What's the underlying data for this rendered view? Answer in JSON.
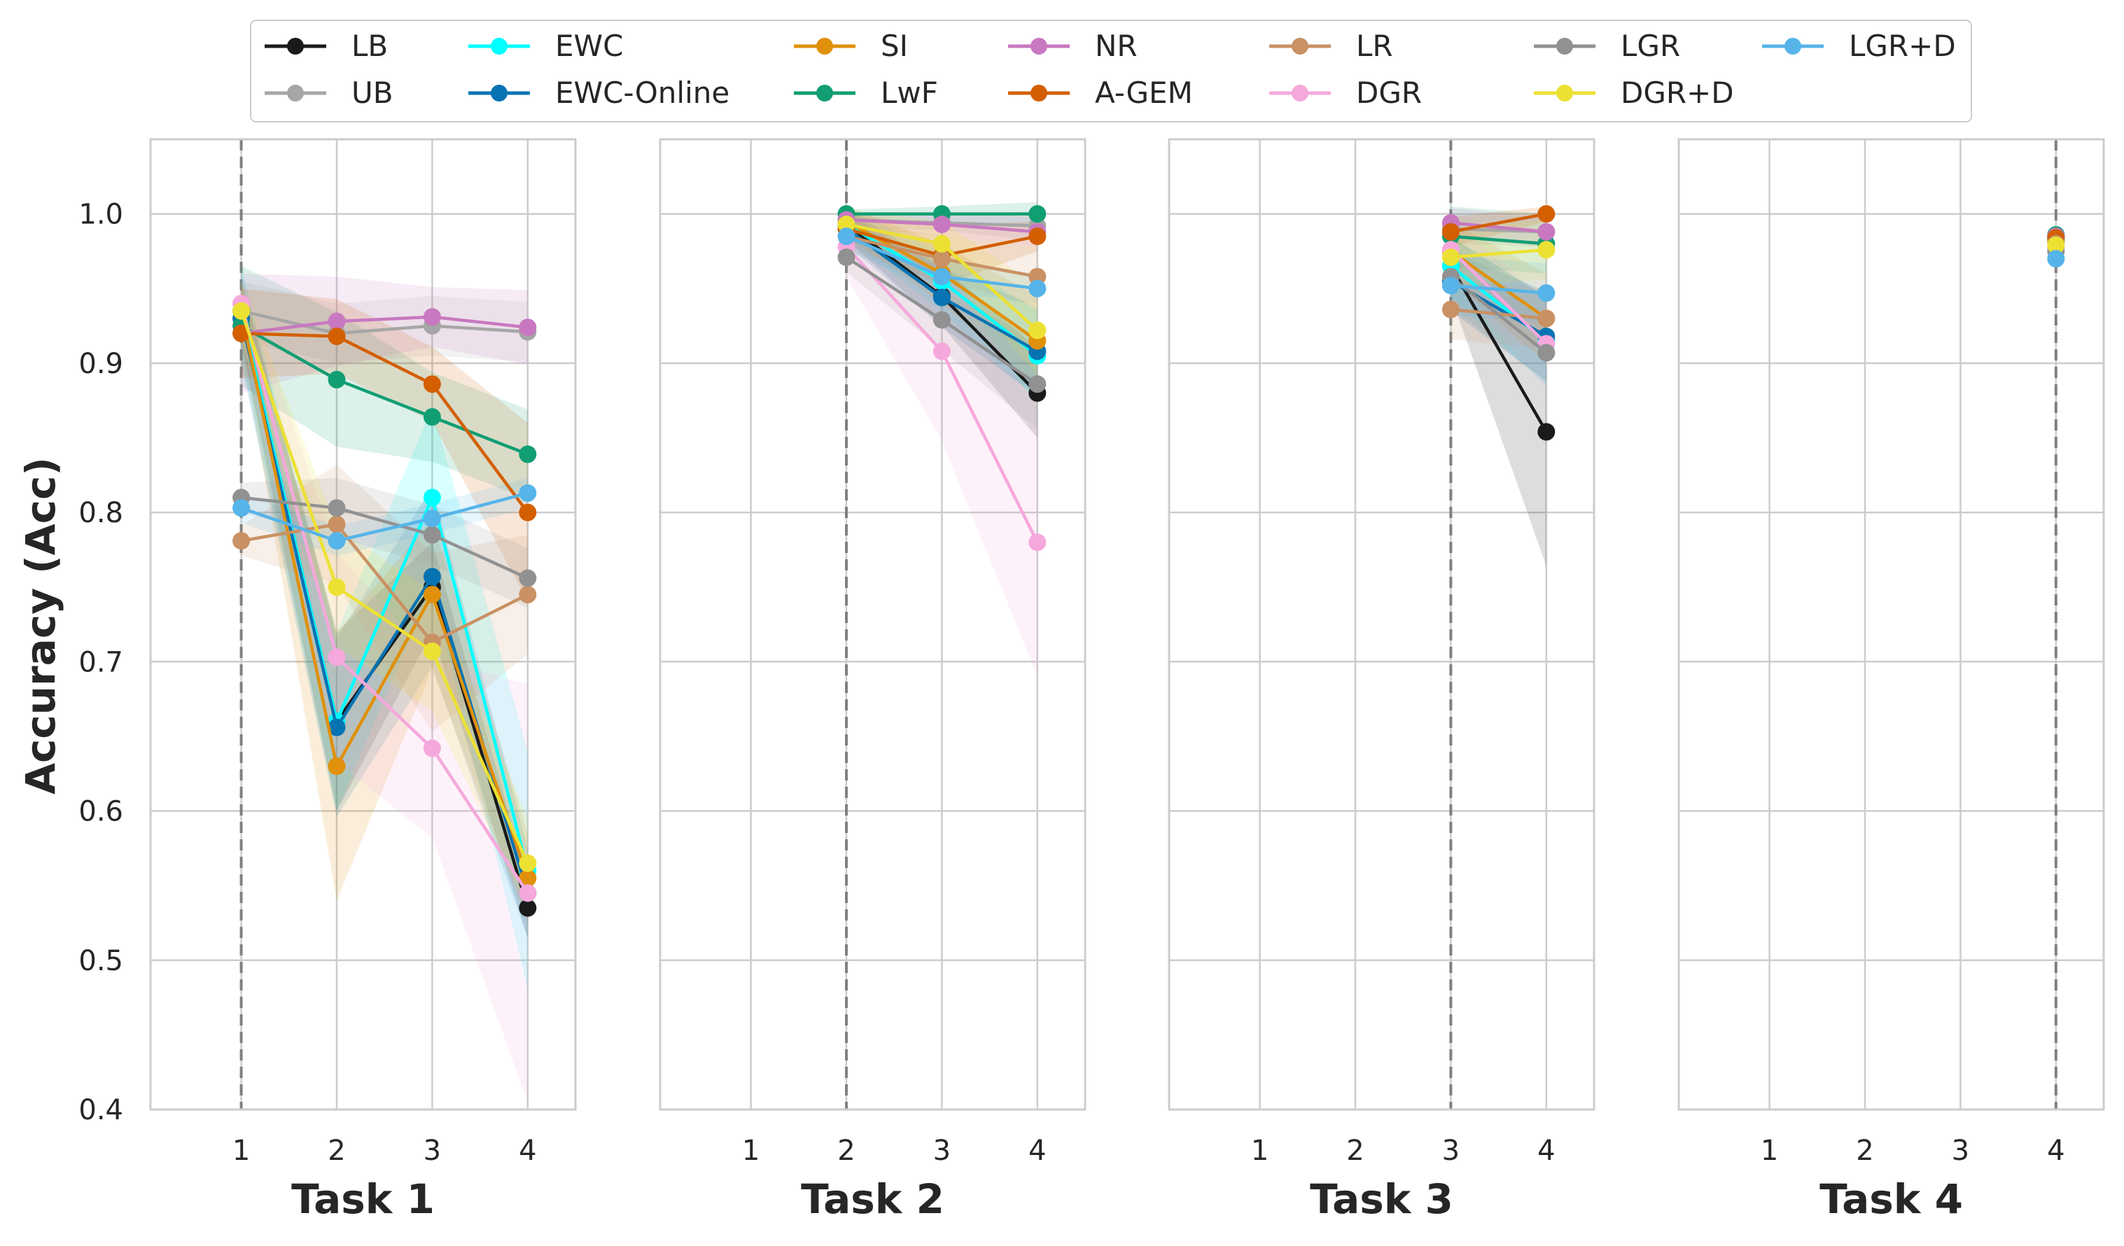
{
  "chart_data": {
    "type": "line",
    "ylabel": "Accuracy (Acc)",
    "ylim": [
      0.4,
      1.05
    ],
    "yticks": [
      0.4,
      0.5,
      0.6,
      0.7,
      0.8,
      0.9,
      1.0
    ],
    "ytick_labels": [
      "0.4",
      "0.5",
      "0.6",
      "0.7",
      "0.8",
      "0.9",
      "1.0"
    ],
    "x": [
      1,
      2,
      3,
      4
    ],
    "xlim": [
      0.05,
      4.5
    ],
    "grid": true,
    "legend_position": "top-center",
    "legend": [
      {
        "name": "LB",
        "color": "#1a1a1a"
      },
      {
        "name": "UB",
        "color": "#a6a6a6"
      },
      {
        "name": "EWC",
        "color": "#00ffff"
      },
      {
        "name": "EWC-Online",
        "color": "#0873b3"
      },
      {
        "name": "SI",
        "color": "#e0900a"
      },
      {
        "name": "LwF",
        "color": "#119e73"
      },
      {
        "name": "NR",
        "color": "#c878c0"
      },
      {
        "name": "A-GEM",
        "color": "#d35f00"
      },
      {
        "name": "LR",
        "color": "#c99164"
      },
      {
        "name": "DGR",
        "color": "#f5a8dc"
      },
      {
        "name": "LGR",
        "color": "#919191"
      },
      {
        "name": "DGR+D",
        "color": "#ece133"
      },
      {
        "name": "LGR+D",
        "color": "#56b4e9"
      }
    ],
    "panels": [
      {
        "xlabel": "Task 1",
        "start": 1,
        "series": [
          {
            "name": "LB",
            "values": [
              0.935,
              0.66,
              0.75,
              0.535
            ],
            "band": [
              0.02,
              0.06,
              0.03,
              0.02
            ]
          },
          {
            "name": "UB",
            "values": [
              0.935,
              0.92,
              0.925,
              0.921
            ],
            "band": [
              0.02,
              0.02,
              0.02,
              0.02
            ]
          },
          {
            "name": "EWC",
            "values": [
              0.935,
              0.66,
              0.81,
              0.56
            ],
            "band": [
              0.03,
              0.06,
              0.06,
              0.08
            ]
          },
          {
            "name": "EWC-Online",
            "values": [
              0.93,
              0.656,
              0.757,
              0.545
            ],
            "band": [
              0.03,
              0.06,
              0.06,
              0.03
            ]
          },
          {
            "name": "SI",
            "values": [
              0.935,
              0.63,
              0.745,
              0.555
            ],
            "band": [
              0.02,
              0.09,
              0.05,
              0.03
            ]
          },
          {
            "name": "LwF",
            "values": [
              0.925,
              0.889,
              0.864,
              0.839
            ],
            "band": [
              0.04,
              0.045,
              0.03,
              0.03
            ]
          },
          {
            "name": "NR",
            "values": [
              0.92,
              0.928,
              0.931,
              0.924
            ],
            "band": [
              0.04,
              0.03,
              0.02,
              0.025
            ]
          },
          {
            "name": "A-GEM",
            "values": [
              0.92,
              0.918,
              0.886,
              0.8
            ],
            "band": [
              0.03,
              0.025,
              0.025,
              0.06
            ]
          },
          {
            "name": "LR",
            "values": [
              0.781,
              0.792,
              0.713,
              0.745
            ],
            "band": [
              0.01,
              0.04,
              0.06,
              0.04
            ]
          },
          {
            "name": "DGR",
            "values": [
              0.94,
              0.703,
              0.642,
              0.545
            ],
            "band": [
              0.02,
              0.07,
              0.06,
              0.14
            ]
          },
          {
            "name": "LGR",
            "values": [
              0.81,
              0.803,
              0.785,
              0.756
            ],
            "band": [
              0.01,
              0.02,
              0.02,
              0.02
            ]
          },
          {
            "name": "DGR+D",
            "values": [
              0.935,
              0.75,
              0.707,
              0.565
            ],
            "band": [
              0.02,
              0.04,
              0.04,
              0.03
            ]
          },
          {
            "name": "LGR+D",
            "values": [
              0.803,
              0.781,
              0.796,
              0.813
            ],
            "band": [
              0.01,
              0.01,
              0.01,
              0.01
            ]
          }
        ]
      },
      {
        "xlabel": "Task 2",
        "start": 2,
        "series": [
          {
            "name": "LB",
            "values": [
              null,
              0.993,
              0.945,
              0.88
            ],
            "band": [
              0,
              0.01,
              0.02,
              0.03
            ]
          },
          {
            "name": "UB",
            "values": [
              null,
              0.996,
              0.994,
              0.992
            ],
            "band": [
              0,
              0.005,
              0.005,
              0.01
            ]
          },
          {
            "name": "EWC",
            "values": [
              null,
              0.993,
              0.955,
              0.905
            ],
            "band": [
              0,
              0.01,
              0.02,
              0.03
            ]
          },
          {
            "name": "EWC-Online",
            "values": [
              null,
              0.99,
              0.944,
              0.908
            ],
            "band": [
              0,
              0.01,
              0.02,
              0.03
            ]
          },
          {
            "name": "SI",
            "values": [
              null,
              0.995,
              0.96,
              0.915
            ],
            "band": [
              0,
              0.01,
              0.02,
              0.03
            ]
          },
          {
            "name": "LwF",
            "values": [
              null,
              1.0,
              1.0,
              1.0
            ],
            "band": [
              0,
              0.003,
              0.005,
              0.008
            ]
          },
          {
            "name": "NR",
            "values": [
              null,
              0.996,
              0.993,
              0.988
            ],
            "band": [
              0,
              0.005,
              0.008,
              0.01
            ]
          },
          {
            "name": "A-GEM",
            "values": [
              null,
              0.99,
              0.972,
              0.985
            ],
            "band": [
              0,
              0.01,
              0.02,
              0.01
            ]
          },
          {
            "name": "LR",
            "values": [
              null,
              0.985,
              0.97,
              0.958
            ],
            "band": [
              0,
              0.01,
              0.015,
              0.02
            ]
          },
          {
            "name": "DGR",
            "values": [
              null,
              0.978,
              0.908,
              0.78
            ],
            "band": [
              0,
              0.02,
              0.06,
              0.09
            ]
          },
          {
            "name": "LGR",
            "values": [
              null,
              0.971,
              0.929,
              0.886
            ],
            "band": [
              0,
              0.01,
              0.02,
              0.03
            ]
          },
          {
            "name": "DGR+D",
            "values": [
              null,
              0.993,
              0.98,
              0.922
            ],
            "band": [
              0,
              0.01,
              0.015,
              0.03
            ]
          },
          {
            "name": "LGR+D",
            "values": [
              null,
              0.985,
              0.958,
              0.95
            ],
            "band": [
              0,
              0.01,
              0.01,
              0.01
            ]
          }
        ]
      },
      {
        "xlabel": "Task 3",
        "start": 3,
        "series": [
          {
            "name": "LB",
            "values": [
              null,
              null,
              0.965,
              0.854
            ],
            "band": [
              0,
              0,
              0.02,
              0.09
            ]
          },
          {
            "name": "UB",
            "values": [
              null,
              null,
              0.99,
              0.988
            ],
            "band": [
              0,
              0,
              0.01,
              0.01
            ]
          },
          {
            "name": "EWC",
            "values": [
              null,
              null,
              0.965,
              0.915
            ],
            "band": [
              0,
              0,
              0.02,
              0.03
            ]
          },
          {
            "name": "EWC-Online",
            "values": [
              null,
              null,
              0.955,
              0.918
            ],
            "band": [
              0,
              0,
              0.02,
              0.03
            ]
          },
          {
            "name": "SI",
            "values": [
              null,
              null,
              0.975,
              0.93
            ],
            "band": [
              0,
              0,
              0.02,
              0.03
            ]
          },
          {
            "name": "LwF",
            "values": [
              null,
              null,
              0.985,
              0.98
            ],
            "band": [
              0,
              0,
              0.02,
              0.02
            ]
          },
          {
            "name": "NR",
            "values": [
              null,
              null,
              0.994,
              0.988
            ],
            "band": [
              0,
              0,
              0.01,
              0.01
            ]
          },
          {
            "name": "A-GEM",
            "values": [
              null,
              null,
              0.988,
              1.0
            ],
            "band": [
              0,
              0,
              0.01,
              0.005
            ]
          },
          {
            "name": "LR",
            "values": [
              null,
              null,
              0.936,
              0.93
            ],
            "band": [
              0,
              0,
              0.02,
              0.02
            ]
          },
          {
            "name": "DGR",
            "values": [
              null,
              null,
              0.976,
              0.913
            ],
            "band": [
              0,
              0,
              0.02,
              0.03
            ]
          },
          {
            "name": "LGR",
            "values": [
              null,
              null,
              0.958,
              0.907
            ],
            "band": [
              0,
              0,
              0.02,
              0.02
            ]
          },
          {
            "name": "DGR+D",
            "values": [
              null,
              null,
              0.971,
              0.976
            ],
            "band": [
              0,
              0,
              0.02,
              0.02
            ]
          },
          {
            "name": "LGR+D",
            "values": [
              null,
              null,
              0.952,
              0.947
            ],
            "band": [
              0,
              0,
              0.02,
              0.02
            ]
          }
        ]
      },
      {
        "xlabel": "Task 4",
        "start": 4,
        "series": [
          {
            "name": "LB",
            "values": [
              null,
              null,
              null,
              0.985
            ],
            "band": [
              0,
              0,
              0,
              0
            ]
          },
          {
            "name": "UB",
            "values": [
              null,
              null,
              null,
              0.985
            ],
            "band": [
              0,
              0,
              0,
              0
            ]
          },
          {
            "name": "EWC",
            "values": [
              null,
              null,
              null,
              0.983
            ],
            "band": [
              0,
              0,
              0,
              0
            ]
          },
          {
            "name": "EWC-Online",
            "values": [
              null,
              null,
              null,
              0.983
            ],
            "band": [
              0,
              0,
              0,
              0
            ]
          },
          {
            "name": "SI",
            "values": [
              null,
              null,
              null,
              0.982
            ],
            "band": [
              0,
              0,
              0,
              0
            ]
          },
          {
            "name": "LwF",
            "values": [
              null,
              null,
              null,
              0.986
            ],
            "band": [
              0,
              0,
              0,
              0
            ]
          },
          {
            "name": "NR",
            "values": [
              null,
              null,
              null,
              0.985
            ],
            "band": [
              0,
              0,
              0,
              0
            ]
          },
          {
            "name": "A-GEM",
            "values": [
              null,
              null,
              null,
              0.984
            ],
            "band": [
              0,
              0,
              0,
              0
            ]
          },
          {
            "name": "LR",
            "values": [
              null,
              null,
              null,
              0.98
            ],
            "band": [
              0,
              0,
              0,
              0
            ]
          },
          {
            "name": "DGR",
            "values": [
              null,
              null,
              null,
              0.978
            ],
            "band": [
              0,
              0,
              0,
              0
            ]
          },
          {
            "name": "LGR",
            "values": [
              null,
              null,
              null,
              0.975
            ],
            "band": [
              0,
              0,
              0,
              0
            ]
          },
          {
            "name": "DGR+D",
            "values": [
              null,
              null,
              null,
              0.979
            ],
            "band": [
              0,
              0,
              0,
              0
            ]
          },
          {
            "name": "LGR+D",
            "values": [
              null,
              null,
              null,
              0.97
            ],
            "band": [
              0,
              0,
              0,
              0
            ]
          }
        ]
      }
    ]
  }
}
